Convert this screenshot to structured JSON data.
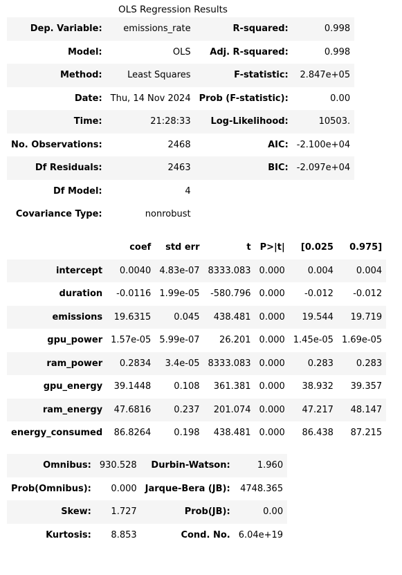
{
  "title": "OLS Regression Results",
  "summary_rows": [
    {
      "l1": "Dep. Variable:",
      "v1": "emissions_rate",
      "l2": "R-squared:",
      "v2": "0.998"
    },
    {
      "l1": "Model:",
      "v1": "OLS",
      "l2": "Adj. R-squared:",
      "v2": "0.998"
    },
    {
      "l1": "Method:",
      "v1": "Least Squares",
      "l2": "F-statistic:",
      "v2": "2.847e+05"
    },
    {
      "l1": "Date:",
      "v1": "Thu, 14 Nov 2024",
      "l2": "Prob (F-statistic):",
      "v2": "0.00"
    },
    {
      "l1": "Time:",
      "v1": "21:28:33",
      "l2": "Log-Likelihood:",
      "v2": "10503."
    },
    {
      "l1": "No. Observations:",
      "v1": "2468",
      "l2": "AIC:",
      "v2": "-2.100e+04"
    },
    {
      "l1": "Df Residuals:",
      "v1": "2463",
      "l2": "BIC:",
      "v2": "-2.097e+04"
    },
    {
      "l1": "Df Model:",
      "v1": "4",
      "l2": "",
      "v2": ""
    },
    {
      "l1": "Covariance Type:",
      "v1": "nonrobust",
      "l2": "",
      "v2": ""
    }
  ],
  "coef_headers": [
    "",
    "coef",
    "std err",
    "t",
    "P>|t|",
    "[0.025",
    "0.975]"
  ],
  "coef_rows": [
    {
      "name": "intercept",
      "coef": "0.0040",
      "stderr": "4.83e-07",
      "t": "8333.083",
      "p": "0.000",
      "lo": "0.004",
      "hi": "0.004"
    },
    {
      "name": "duration",
      "coef": "-0.0116",
      "stderr": "1.99e-05",
      "t": "-580.796",
      "p": "0.000",
      "lo": "-0.012",
      "hi": "-0.012"
    },
    {
      "name": "emissions",
      "coef": "19.6315",
      "stderr": "0.045",
      "t": "438.481",
      "p": "0.000",
      "lo": "19.544",
      "hi": "19.719"
    },
    {
      "name": "gpu_power",
      "coef": "1.57e-05",
      "stderr": "5.99e-07",
      "t": "26.201",
      "p": "0.000",
      "lo": "1.45e-05",
      "hi": "1.69e-05"
    },
    {
      "name": "ram_power",
      "coef": "0.2834",
      "stderr": "3.4e-05",
      "t": "8333.083",
      "p": "0.000",
      "lo": "0.283",
      "hi": "0.283"
    },
    {
      "name": "gpu_energy",
      "coef": "39.1448",
      "stderr": "0.108",
      "t": "361.381",
      "p": "0.000",
      "lo": "38.932",
      "hi": "39.357"
    },
    {
      "name": "ram_energy",
      "coef": "47.6816",
      "stderr": "0.237",
      "t": "201.074",
      "p": "0.000",
      "lo": "47.217",
      "hi": "48.147"
    },
    {
      "name": "energy_consumed",
      "coef": "86.8264",
      "stderr": "0.198",
      "t": "438.481",
      "p": "0.000",
      "lo": "86.438",
      "hi": "87.215"
    }
  ],
  "diag_rows": [
    {
      "l1": "Omnibus:",
      "v1": "930.528",
      "l2": "Durbin-Watson:",
      "v2": "1.960"
    },
    {
      "l1": "Prob(Omnibus):",
      "v1": "0.000",
      "l2": "Jarque-Bera (JB):",
      "v2": "4748.365"
    },
    {
      "l1": "Skew:",
      "v1": "1.727",
      "l2": "Prob(JB):",
      "v2": "0.00"
    },
    {
      "l1": "Kurtosis:",
      "v1": "8.853",
      "l2": "Cond. No.",
      "v2": "6.04e+19"
    }
  ]
}
